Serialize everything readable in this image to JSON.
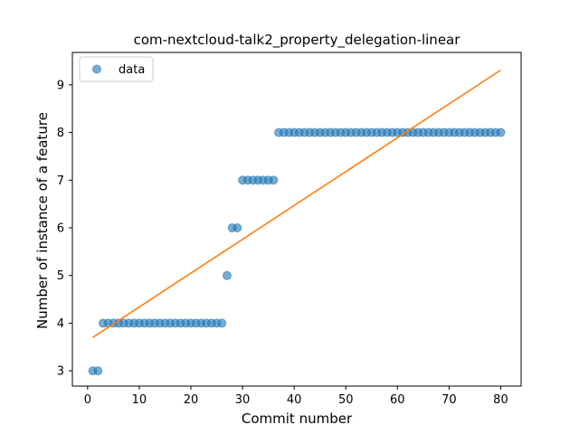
{
  "chart_data": {
    "type": "scatter",
    "title": "com-nextcloud-talk2_property_delegation-linear",
    "xlabel": "Commit number",
    "ylabel": "Number of instance of a feature",
    "xlim": [
      -2.95,
      83.95
    ],
    "ylim": [
      2.68,
      9.68
    ],
    "xticks": [
      0,
      10,
      20,
      30,
      40,
      50,
      60,
      70,
      80
    ],
    "yticks": [
      3,
      4,
      5,
      6,
      7,
      8,
      9
    ],
    "grid": false,
    "legend": {
      "placement": "upper-left",
      "entries": [
        "data"
      ]
    },
    "series": [
      {
        "name": "data",
        "kind": "scatter",
        "color": "#1f77b4",
        "x": [
          1,
          2,
          3,
          4,
          5,
          6,
          7,
          8,
          9,
          10,
          11,
          12,
          13,
          14,
          15,
          16,
          17,
          18,
          19,
          20,
          21,
          22,
          23,
          24,
          25,
          26,
          27,
          28,
          29,
          30,
          31,
          32,
          33,
          34,
          35,
          36,
          37,
          38,
          39,
          40,
          41,
          42,
          43,
          44,
          45,
          46,
          47,
          48,
          49,
          50,
          51,
          52,
          53,
          54,
          55,
          56,
          57,
          58,
          59,
          60,
          61,
          62,
          63,
          64,
          65,
          66,
          67,
          68,
          69,
          70,
          71,
          72,
          73,
          74,
          75,
          76,
          77,
          78,
          79,
          80
        ],
        "y": [
          3,
          3,
          4,
          4,
          4,
          4,
          4,
          4,
          4,
          4,
          4,
          4,
          4,
          4,
          4,
          4,
          4,
          4,
          4,
          4,
          4,
          4,
          4,
          4,
          4,
          4,
          5,
          6,
          6,
          7,
          7,
          7,
          7,
          7,
          7,
          7,
          8,
          8,
          8,
          8,
          8,
          8,
          8,
          8,
          8,
          8,
          8,
          8,
          8,
          8,
          8,
          8,
          8,
          8,
          8,
          8,
          8,
          8,
          8,
          8,
          8,
          8,
          8,
          8,
          8,
          8,
          8,
          8,
          8,
          8,
          8,
          8,
          8,
          8,
          8,
          8,
          8,
          8,
          8,
          8
        ]
      },
      {
        "kind": "line",
        "color": "#ff7f0e",
        "x": [
          1,
          80
        ],
        "y": [
          3.7,
          9.31
        ]
      }
    ]
  }
}
